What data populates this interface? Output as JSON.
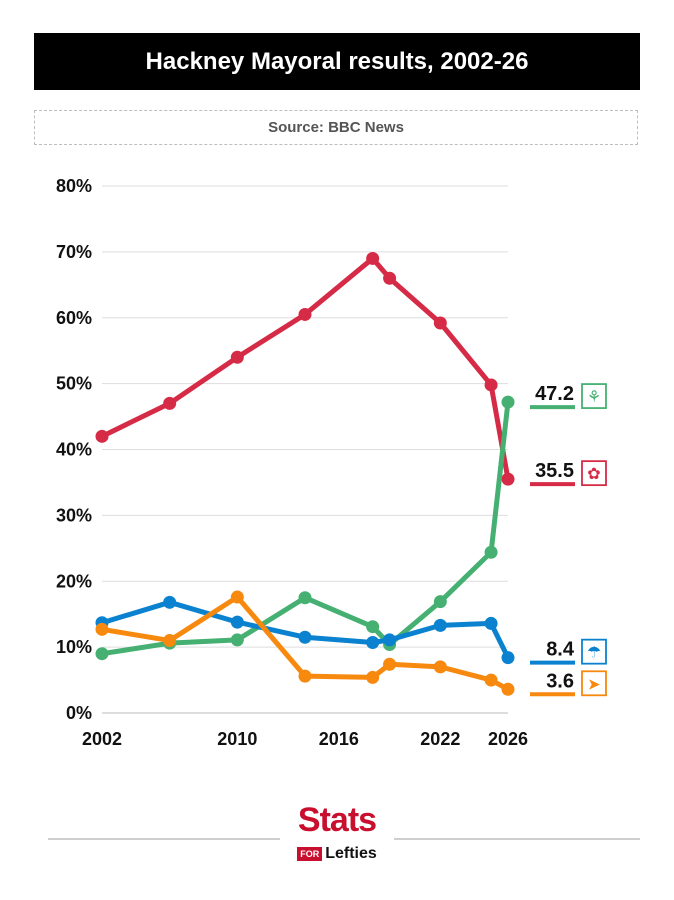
{
  "header": {
    "title": "Hackney Mayoral results, 2002-26",
    "source": "Source: BBC News"
  },
  "chart_data": {
    "type": "line",
    "title": "Hackney Mayoral results, 2002-26",
    "subtitle": "Source: BBC News",
    "xlabel": "",
    "ylabel": "",
    "ylim": [
      0,
      80
    ],
    "x_ticks": [
      "2002",
      "2010",
      "2016",
      "2022",
      "2026"
    ],
    "y_ticks": [
      "0%",
      "10%",
      "20%",
      "30%",
      "40%",
      "50%",
      "60%",
      "70%",
      "80%"
    ],
    "grid": true,
    "x": [
      2002,
      2006,
      2010,
      2014,
      2018,
      2019,
      2022,
      2025,
      2026
    ],
    "series": [
      {
        "party": "Labour",
        "color": "#d62b47",
        "icon": "labour-rose-icon",
        "end_label": "35.5",
        "values": [
          42.0,
          47.0,
          54.0,
          60.5,
          69.0,
          66.0,
          59.2,
          49.8,
          35.5
        ]
      },
      {
        "party": "Green",
        "color": "#45b072",
        "icon": "green-party-icon",
        "end_label": "47.2",
        "values": [
          9.0,
          10.6,
          11.1,
          17.5,
          13.1,
          10.4,
          16.9,
          24.4,
          47.2
        ]
      },
      {
        "party": "Conservative",
        "color": "#0a82cf",
        "icon": "conservative-tree-icon",
        "end_label": "8.4",
        "values": [
          13.7,
          16.8,
          13.8,
          11.5,
          10.7,
          11.1,
          13.3,
          13.6,
          8.4
        ]
      },
      {
        "party": "Liberal Democrat",
        "color": "#f7890e",
        "icon": "libdem-bird-icon",
        "end_label": "3.6",
        "values": [
          12.7,
          11.0,
          17.6,
          5.6,
          5.4,
          7.4,
          7.0,
          5.0,
          3.6
        ]
      }
    ]
  },
  "footer": {
    "logo_stats": "Stats",
    "logo_for": "FOR",
    "logo_lefties": "Lefties"
  }
}
